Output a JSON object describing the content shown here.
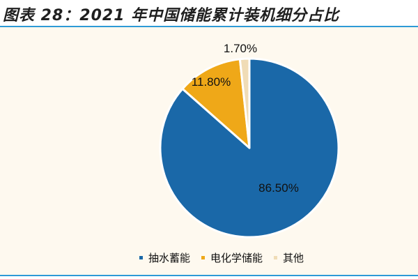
{
  "title": "图表 28：2021 年中国储能累计装机细分占比",
  "colors": {
    "pumped": "#1a68a8",
    "electro": "#efa818",
    "other": "#f0dcb6",
    "rule": "#2d9ad6",
    "panel": "#fef9ef"
  },
  "chart_data": {
    "type": "pie",
    "title": "2021 年中国储能累计装机细分占比",
    "categories": [
      "抽水蓄能",
      "电化学储能",
      "其他"
    ],
    "values": [
      86.5,
      11.8,
      1.7
    ],
    "labels": [
      "86.50%",
      "11.80%",
      "1.70%"
    ],
    "legend_position": "bottom",
    "start_angle_deg": 0,
    "direction": "clockwise"
  }
}
